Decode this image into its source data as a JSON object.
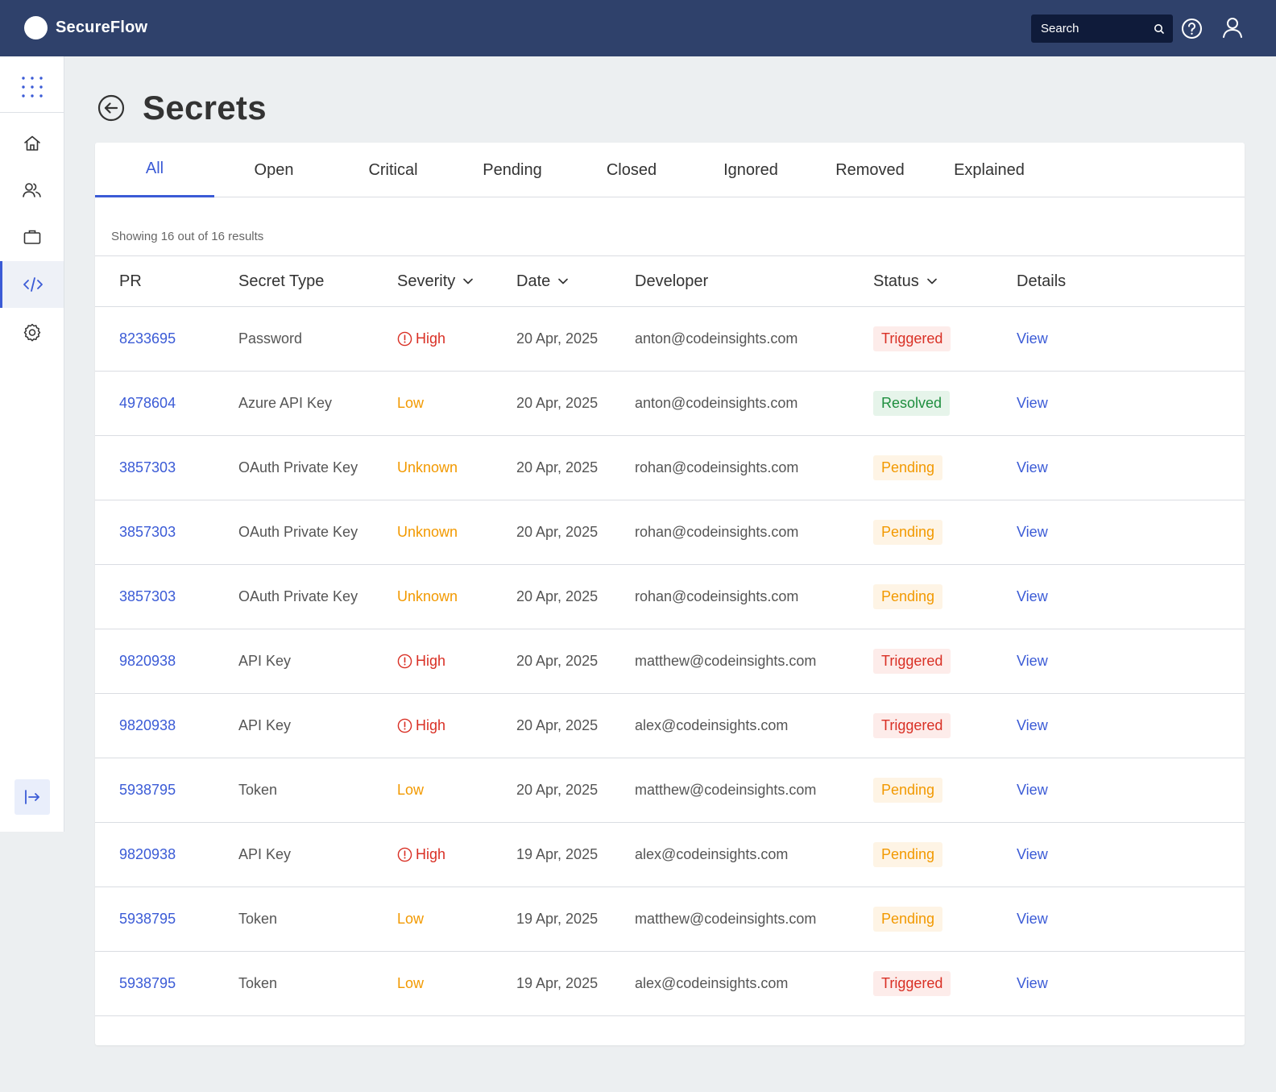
{
  "app": {
    "name": "SecureFlow"
  },
  "search": {
    "placeholder": "Search"
  },
  "page": {
    "title": "Secrets"
  },
  "tabs": [
    "All",
    "Open",
    "Critical",
    "Pending",
    "Closed",
    "Ignored",
    "Removed",
    "Explained"
  ],
  "active_tab": "All",
  "results_text": "Showing 16 out of 16 results",
  "columns": {
    "pr": "PR",
    "secret_type": "Secret Type",
    "severity": "Severity",
    "date": "Date",
    "developer": "Developer",
    "status": "Status",
    "details": "Details"
  },
  "rows": [
    {
      "pr": "8233695",
      "secret_type": "Password",
      "severity": "High",
      "date": "20 Apr, 2025",
      "developer": "anton@codeinsights.com",
      "status": "Triggered",
      "details": "View"
    },
    {
      "pr": "4978604",
      "secret_type": "Azure API Key",
      "severity": "Low",
      "date": "20 Apr, 2025",
      "developer": "anton@codeinsights.com",
      "status": "Resolved",
      "details": "View"
    },
    {
      "pr": "3857303",
      "secret_type": "OAuth Private Key",
      "severity": "Unknown",
      "date": "20 Apr, 2025",
      "developer": "rohan@codeinsights.com",
      "status": "Pending",
      "details": "View"
    },
    {
      "pr": "3857303",
      "secret_type": "OAuth Private Key",
      "severity": "Unknown",
      "date": "20 Apr, 2025",
      "developer": "rohan@codeinsights.com",
      "status": "Pending",
      "details": "View"
    },
    {
      "pr": "3857303",
      "secret_type": "OAuth Private Key",
      "severity": "Unknown",
      "date": "20 Apr, 2025",
      "developer": "rohan@codeinsights.com",
      "status": "Pending",
      "details": "View"
    },
    {
      "pr": "9820938",
      "secret_type": "API Key",
      "severity": "High",
      "date": "20 Apr, 2025",
      "developer": "matthew@codeinsights.com",
      "status": "Triggered",
      "details": "View"
    },
    {
      "pr": "9820938",
      "secret_type": "API Key",
      "severity": "High",
      "date": "20 Apr, 2025",
      "developer": "alex@codeinsights.com",
      "status": "Triggered",
      "details": "View"
    },
    {
      "pr": "5938795",
      "secret_type": "Token",
      "severity": "Low",
      "date": "20 Apr, 2025",
      "developer": "matthew@codeinsights.com",
      "status": "Pending",
      "details": "View"
    },
    {
      "pr": "9820938",
      "secret_type": "API Key",
      "severity": "High",
      "date": "19 Apr, 2025",
      "developer": "alex@codeinsights.com",
      "status": "Pending",
      "details": "View"
    },
    {
      "pr": "5938795",
      "secret_type": "Token",
      "severity": "Low",
      "date": "19 Apr, 2025",
      "developer": "matthew@codeinsights.com",
      "status": "Pending",
      "details": "View"
    },
    {
      "pr": "5938795",
      "secret_type": "Token",
      "severity": "Low",
      "date": "19 Apr, 2025",
      "developer": "alex@codeinsights.com",
      "status": "Triggered",
      "details": "View"
    }
  ],
  "sidebar": {
    "icons": [
      "apps-grid-icon",
      "home-icon",
      "users-icon",
      "briefcase-icon",
      "code-icon",
      "settings-icon",
      "logout-icon"
    ],
    "active": "code-icon"
  },
  "colors": {
    "topbar": "#2f416b",
    "accent": "#3b5bd6",
    "high": "#d93025",
    "low": "#f29900",
    "resolved": "#1e8e3e"
  }
}
